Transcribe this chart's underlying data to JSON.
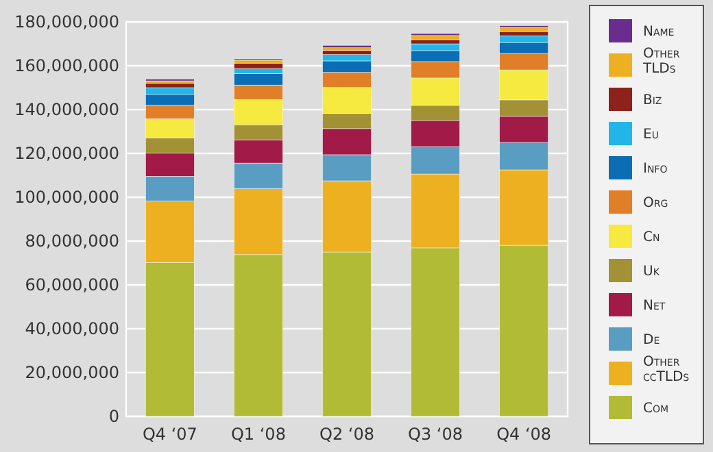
{
  "chart_data": {
    "type": "bar",
    "stacked": true,
    "categories": [
      "Q4 ‘07",
      "Q1 ‘08",
      "Q2 ‘08",
      "Q3 ‘08",
      "Q4 ‘08"
    ],
    "ylim": [
      0,
      180000000
    ],
    "yticks": [
      {
        "value": 0,
        "label": "0"
      },
      {
        "value": 20000000,
        "label": "20,000,000"
      },
      {
        "value": 40000000,
        "label": "40,000,000"
      },
      {
        "value": 60000000,
        "label": "60,000,000"
      },
      {
        "value": 80000000,
        "label": "80,000,000"
      },
      {
        "value": 100000000,
        "label": "100,000,000"
      },
      {
        "value": 120000000,
        "label": "120,000,000"
      },
      {
        "value": 140000000,
        "label": "140,000,000"
      },
      {
        "value": 160000000,
        "label": "160,000,000"
      },
      {
        "value": 180000000,
        "label": "180,000,000"
      }
    ],
    "grid": "y",
    "legend": "right",
    "series": [
      {
        "name": "Com",
        "color": "#b1bb36",
        "values": [
          70200000,
          73800000,
          75000000,
          76900000,
          78100000
        ]
      },
      {
        "name": "Other ccTLDs",
        "color": "#ecb021",
        "values": [
          28100000,
          30100000,
          32500000,
          33700000,
          34400000
        ]
      },
      {
        "name": "De",
        "color": "#5a9dc3",
        "values": [
          11300000,
          11700000,
          11900000,
          12500000,
          12500000
        ]
      },
      {
        "name": "Net",
        "color": "#a21a48",
        "values": [
          10600000,
          10600000,
          11900000,
          11900000,
          11900000
        ]
      },
      {
        "name": "Uk",
        "color": "#a39135",
        "values": [
          6900000,
          6900000,
          6900000,
          6900000,
          7500000
        ]
      },
      {
        "name": "Cn",
        "color": "#f6e940",
        "values": [
          8700000,
          11500000,
          11900000,
          12500000,
          13700000
        ]
      },
      {
        "name": "Org",
        "color": "#e07f27",
        "values": [
          6300000,
          6600000,
          6900000,
          7500000,
          7500000
        ]
      },
      {
        "name": "Info",
        "color": "#0b6db4",
        "values": [
          4800000,
          5200000,
          5200000,
          5000000,
          5000000
        ]
      },
      {
        "name": "Eu",
        "color": "#22b6e8",
        "values": [
          3100000,
          2300000,
          2900000,
          3100000,
          3100000
        ]
      },
      {
        "name": "Biz",
        "color": "#8c2219",
        "values": [
          2100000,
          2500000,
          1900000,
          1900000,
          1900000
        ]
      },
      {
        "name": "Other TLDs",
        "color": "#ecb021",
        "values": [
          1000000,
          1300000,
          1200000,
          1900000,
          1900000
        ]
      },
      {
        "name": "Name",
        "color": "#6a2c8e",
        "values": [
          800000,
          600000,
          1100000,
          900000,
          800000
        ]
      }
    ]
  }
}
